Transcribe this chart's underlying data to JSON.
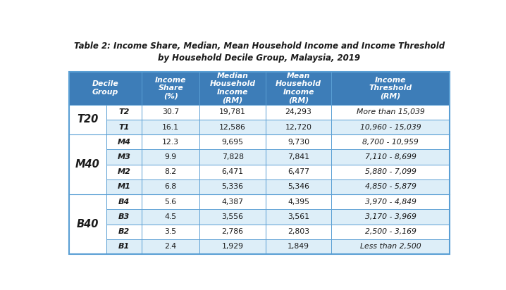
{
  "title_line1": "Table 2: Income Share, Median, Mean Household Income and Income Threshold",
  "title_line2": "by Household Decile Group, Malaysia, 2019",
  "group_labels": [
    {
      "label": "T20",
      "rows": [
        0,
        1
      ]
    },
    {
      "label": "M40",
      "rows": [
        2,
        3,
        4,
        5
      ]
    },
    {
      "label": "B40",
      "rows": [
        6,
        7,
        8,
        9
      ]
    }
  ],
  "rows": [
    {
      "decile": "T2",
      "income_share": "30.7",
      "median": "19,781",
      "mean": "24,293",
      "threshold": "More than 15,039"
    },
    {
      "decile": "T1",
      "income_share": "16.1",
      "median": "12,586",
      "mean": "12,720",
      "threshold": "10,960 - 15,039"
    },
    {
      "decile": "M4",
      "income_share": "12.3",
      "median": "9,695",
      "mean": "9,730",
      "threshold": "8,700 - 10,959"
    },
    {
      "decile": "M3",
      "income_share": "9.9",
      "median": "7,828",
      "mean": "7,841",
      "threshold": "7,110 - 8,699"
    },
    {
      "decile": "M2",
      "income_share": "8.2",
      "median": "6,471",
      "mean": "6,477",
      "threshold": "5,880 - 7,099"
    },
    {
      "decile": "M1",
      "income_share": "6.8",
      "median": "5,336",
      "mean": "5,346",
      "threshold": "4,850 - 5,879"
    },
    {
      "decile": "B4",
      "income_share": "5.6",
      "median": "4,387",
      "mean": "4,395",
      "threshold": "3,970 - 4,849"
    },
    {
      "decile": "B3",
      "income_share": "4.5",
      "median": "3,556",
      "mean": "3,561",
      "threshold": "3,170 - 3,969"
    },
    {
      "decile": "B2",
      "income_share": "3.5",
      "median": "2,786",
      "mean": "2,803",
      "threshold": "2,500 - 3,169"
    },
    {
      "decile": "B1",
      "income_share": "2.4",
      "median": "1,929",
      "mean": "1,849",
      "threshold": "Less than 2,500"
    }
  ],
  "row_colors": [
    "#ffffff",
    "#ddeef8",
    "#ffffff",
    "#ddeef8",
    "#ffffff",
    "#ddeef8",
    "#ffffff",
    "#ddeef8",
    "#ffffff",
    "#ddeef8"
  ],
  "header_bg": "#3d7db8",
  "header_text": "#ffffff",
  "group_col_bg": "#ffffff",
  "border_color": "#5a9fd4",
  "divider_color": "#5a9fd4",
  "title_color": "#1a1a1a",
  "cell_text_color": "#1a1a1a",
  "figsize": [
    7.18,
    4.12
  ],
  "dpi": 100,
  "title_fontsize": 8.5,
  "header_fontsize": 7.8,
  "cell_fontsize": 7.8,
  "group_fontsize": 10.5,
  "decile_fontsize": 8.0
}
